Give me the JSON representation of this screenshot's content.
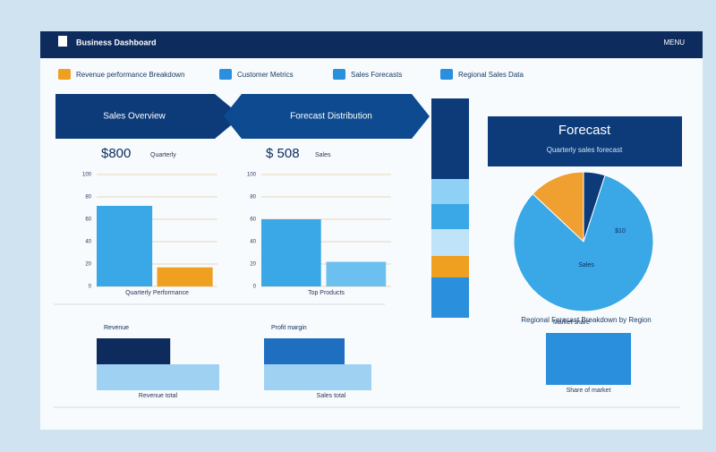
{
  "header": {
    "title": "Business Dashboard",
    "menu": "MENU"
  },
  "nav": [
    "Revenue performance Breakdown",
    "Customer Metrics",
    "Sales Forecasts",
    "Regional Sales Data"
  ],
  "banners": [
    "Sales Overview",
    "Forecast Distribution"
  ],
  "charts": [
    {
      "type": "bar",
      "title": "$800",
      "subtitle": "Quarterly",
      "xlabel": "Quarterly Performance",
      "values": [
        72,
        17
      ],
      "colors": [
        "#3aa7e6",
        "#f0a020"
      ],
      "ylim": [
        0,
        100
      ],
      "yticks": [
        0,
        20,
        40,
        60,
        80,
        100
      ]
    },
    {
      "type": "bar",
      "title": "$ 508",
      "subtitle": "Sales",
      "xlabel": "Top Products",
      "values": [
        60,
        22
      ],
      "colors": [
        "#3aa7e6",
        "#6cc0f0"
      ],
      "ylim": [
        0,
        100
      ],
      "yticks": [
        0,
        20,
        40,
        60,
        80,
        100
      ]
    },
    {
      "type": "hbar",
      "title": "Revenue",
      "xlabel": "Revenue total",
      "values": [
        60,
        100
      ],
      "colors": [
        "#0d2b5c",
        "#9fd2f2"
      ],
      "xlim": [
        0,
        100
      ]
    },
    {
      "type": "hbar",
      "title": "Profit margin",
      "xlabel": "Sales total",
      "values": [
        60,
        80
      ],
      "colors": [
        "#1f6fc0",
        "#9fd2f2"
      ],
      "xlim": [
        0,
        100
      ]
    },
    {
      "type": "hbar",
      "title": "Market share",
      "xlabel": "Share of market",
      "values": [
        70
      ],
      "colors": [
        "#2a8fdc"
      ],
      "xlim": [
        0,
        70
      ]
    },
    {
      "type": "pie",
      "title": "Forecast",
      "subtitle": "Quarterly sales forecast",
      "caption": "Regional Forecast Breakdown by Region",
      "values": [
        13,
        5,
        82
      ],
      "colors": [
        "#f0a030",
        "#0d3b7a",
        "#3aa7e6"
      ],
      "inner_labels": [
        "$10",
        "Sales"
      ]
    }
  ]
}
